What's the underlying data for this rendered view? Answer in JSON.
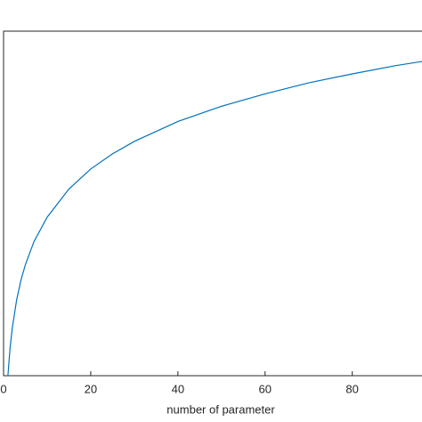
{
  "chart_data": {
    "type": "line",
    "x_label": "number of parameter",
    "x": [
      1,
      1.5,
      2,
      3,
      4,
      5,
      7,
      10,
      15,
      20,
      25,
      30,
      40,
      50,
      60,
      70,
      80,
      90,
      96
    ],
    "series": [
      {
        "color": "#0072bd",
        "values": [
          0,
          0.41,
          0.69,
          1.1,
          1.39,
          1.61,
          1.95,
          2.3,
          2.71,
          3.0,
          3.22,
          3.4,
          3.69,
          3.91,
          4.09,
          4.25,
          4.38,
          4.5,
          4.56
        ]
      }
    ],
    "xlim": [
      0,
      96
    ],
    "ylim": [
      0,
      5
    ],
    "xticks": [
      0,
      20,
      40,
      60,
      80
    ]
  }
}
